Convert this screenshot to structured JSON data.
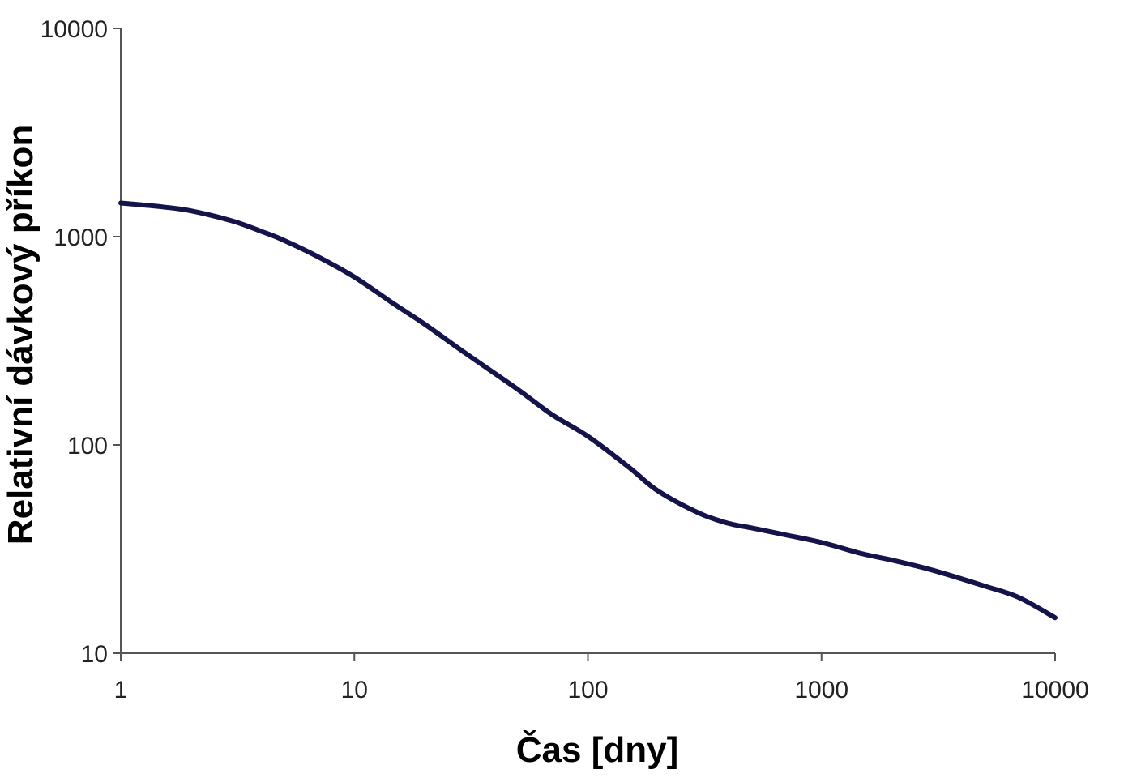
{
  "chart_data": {
    "type": "line",
    "xlabel": "Čas [dny]",
    "ylabel": "Relativní dávkový příkon",
    "x_scale": "log",
    "y_scale": "log",
    "xlim": [
      1,
      10000
    ],
    "ylim": [
      10,
      10000
    ],
    "x_ticks": [
      "1",
      "10",
      "100",
      "1000",
      "10000"
    ],
    "y_ticks": [
      "10",
      "100",
      "1000",
      "10000"
    ],
    "grid": false,
    "legend": "none",
    "line_color": "#14144a",
    "series": [
      {
        "x": [
          1,
          1.5,
          2,
          3,
          4,
          5,
          7,
          10,
          15,
          20,
          30,
          50,
          70,
          100,
          150,
          200,
          300,
          400,
          500,
          700,
          1000,
          1500,
          2000,
          3000,
          5000,
          7000,
          10000
        ],
        "y": [
          1450,
          1390,
          1330,
          1190,
          1060,
          960,
          800,
          640,
          470,
          380,
          275,
          185,
          140,
          110,
          78,
          60,
          47,
          42,
          40,
          37,
          34,
          30,
          28,
          25,
          21,
          18.5,
          14.8
        ]
      }
    ]
  }
}
